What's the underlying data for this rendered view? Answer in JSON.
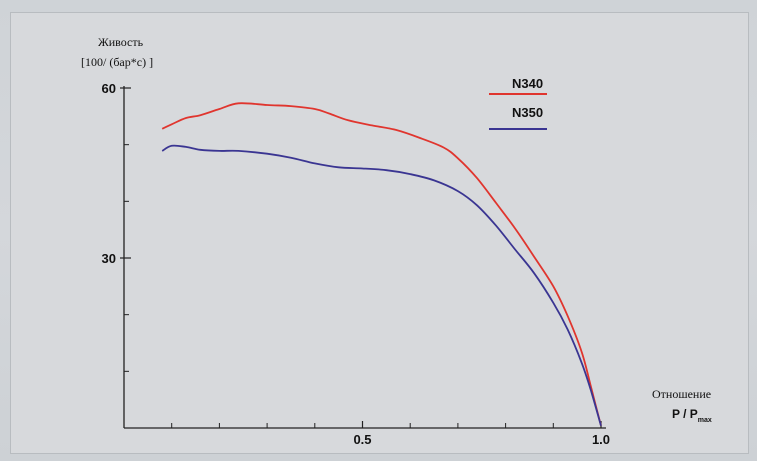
{
  "chart_data": {
    "type": "line",
    "ylabel_line1": "Живость",
    "ylabel_line2": "[100/ (бар*с) ]",
    "xlabel_line1": "Отношение",
    "xlabel_line2": "P / P",
    "xlabel_sub": "max",
    "xlim": [
      0.0,
      1.0
    ],
    "ylim": [
      0,
      60
    ],
    "x_ticks": [
      0.5,
      1.0
    ],
    "x_tick_labels": [
      "0.5",
      "1.0"
    ],
    "x_minor_ticks": [
      0.1,
      0.2,
      0.3,
      0.4,
      0.6,
      0.7,
      0.8,
      0.9
    ],
    "y_ticks": [
      30,
      60
    ],
    "y_tick_labels": [
      "30",
      "60"
    ],
    "y_minor_ticks": [
      10,
      20,
      40,
      50
    ],
    "grid": false,
    "legend_position": "top-right",
    "series": [
      {
        "name": "N340",
        "color": "#e0352e",
        "x": [
          0.08,
          0.1,
          0.13,
          0.16,
          0.2,
          0.24,
          0.3,
          0.35,
          0.4,
          0.43,
          0.47,
          0.52,
          0.57,
          0.62,
          0.67,
          0.7,
          0.74,
          0.78,
          0.82,
          0.86,
          0.9,
          0.93,
          0.96,
          0.98,
          1.0
        ],
        "y": [
          52.8,
          53.6,
          54.7,
          55.2,
          56.3,
          57.3,
          57.0,
          56.8,
          56.3,
          55.5,
          54.3,
          53.4,
          52.6,
          51.2,
          49.5,
          47.6,
          44.1,
          39.7,
          35.2,
          30.2,
          25.0,
          19.8,
          13.3,
          6.9,
          0.4
        ]
      },
      {
        "name": "N350",
        "color": "#3a3592",
        "x": [
          0.08,
          0.1,
          0.13,
          0.16,
          0.2,
          0.24,
          0.3,
          0.35,
          0.4,
          0.45,
          0.5,
          0.55,
          0.6,
          0.65,
          0.7,
          0.74,
          0.78,
          0.82,
          0.86,
          0.9,
          0.93,
          0.96,
          0.98,
          1.0
        ],
        "y": [
          48.9,
          49.8,
          49.6,
          49.1,
          48.9,
          48.9,
          48.4,
          47.7,
          46.7,
          46.0,
          45.8,
          45.5,
          44.8,
          43.7,
          41.8,
          39.3,
          35.7,
          31.5,
          27.3,
          22.1,
          17.4,
          11.4,
          6.3,
          0.4
        ]
      }
    ]
  }
}
